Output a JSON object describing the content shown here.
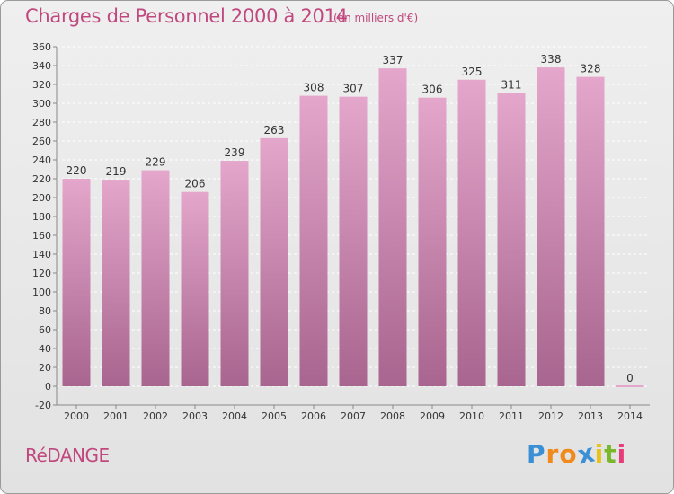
{
  "header": {
    "title": "Charges de Personnel 2000 à 2014",
    "unit": "(en milliers d'€)"
  },
  "footer": {
    "commune": "RéDANGE",
    "logo_letters": [
      "P",
      "r",
      "o",
      "x",
      "i",
      "t",
      "i"
    ],
    "logo_colors": [
      "#3b8fd4",
      "#f08a1c",
      "#f08a1c",
      "#3b8fd4",
      "#e8c21a",
      "#7ab829",
      "#e83b7a"
    ]
  },
  "colors": {
    "bar_top": "#e4a6cb",
    "bar_bottom": "#a8658f",
    "grid": "#ffffff",
    "axis": "#888888",
    "title": "#c0487e"
  },
  "chart_data": {
    "type": "bar",
    "categories": [
      "2000",
      "2001",
      "2002",
      "2003",
      "2004",
      "2005",
      "2006",
      "2007",
      "2008",
      "2009",
      "2010",
      "2011",
      "2012",
      "2013",
      "2014"
    ],
    "values": [
      220,
      219,
      229,
      206,
      239,
      263,
      308,
      307,
      337,
      306,
      325,
      311,
      338,
      328,
      0
    ],
    "data_labels": [
      "220",
      "219",
      "229",
      "206",
      "239",
      "263",
      "308",
      "307",
      "337",
      "306",
      "325",
      "311",
      "338",
      "328",
      "0"
    ],
    "ylim": [
      -20,
      360
    ],
    "yticks": [
      -20,
      0,
      20,
      40,
      60,
      80,
      100,
      120,
      140,
      160,
      180,
      200,
      220,
      240,
      260,
      280,
      300,
      320,
      340,
      360
    ],
    "ytick_labels": [
      "-20",
      "0",
      "20",
      "40",
      "60",
      "80",
      "100",
      "120",
      "140",
      "160",
      "180",
      "200",
      "220",
      "240",
      "260",
      "280",
      "300",
      "320",
      "340",
      "360"
    ],
    "grid": true,
    "legend": "none"
  }
}
